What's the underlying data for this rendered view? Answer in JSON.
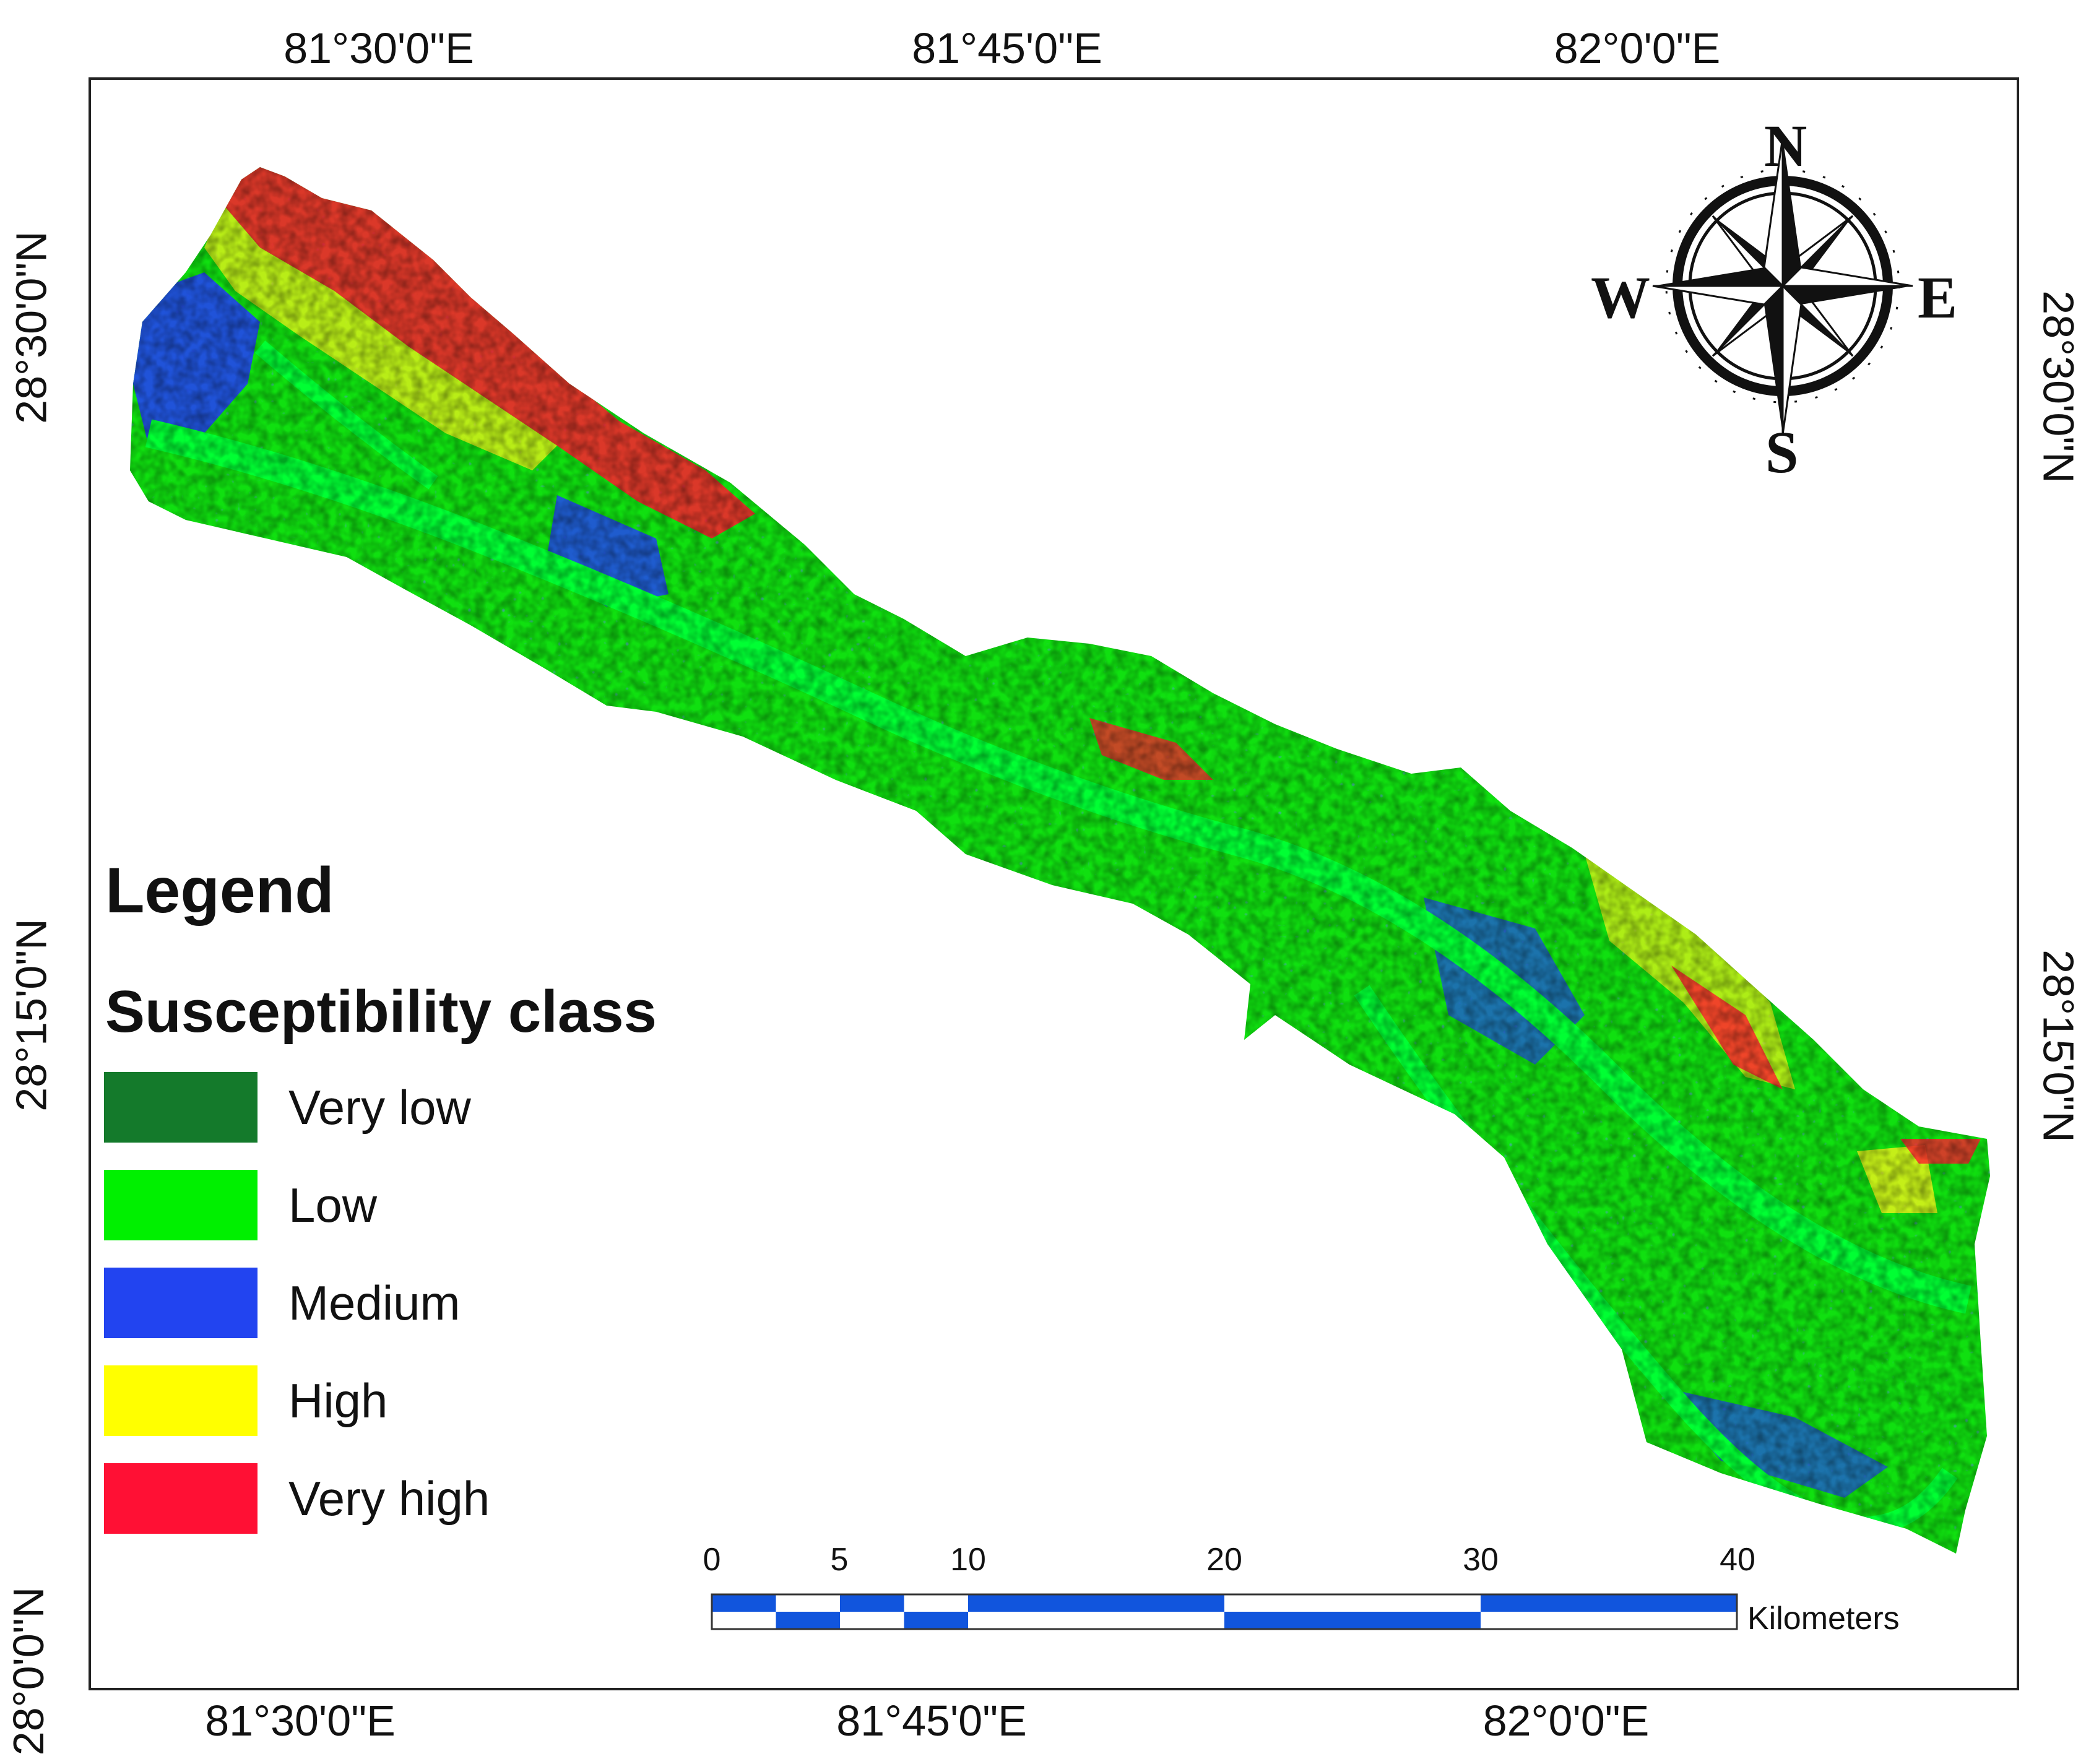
{
  "graticule": {
    "top_labels": [
      "81°30'0\"E",
      "81°45'0\"E",
      "82°0'0\"E"
    ],
    "bottom_labels": [
      "81°30'0\"E",
      "81°45'0\"E",
      "82°0'0\"E"
    ],
    "left_labels": [
      "28°30'0\"N",
      "28°15'0\"N",
      "28°0'0\"N"
    ],
    "right_labels": [
      "28°30'0\"N",
      "28°15'0\"N"
    ]
  },
  "legend": {
    "title": "Legend",
    "subtitle": "Susceptibility class",
    "items": [
      {
        "label": "Very low",
        "color": "#147a2b"
      },
      {
        "label": "Low",
        "color": "#00f000"
      },
      {
        "label": "Medium",
        "color": "#2244f0"
      },
      {
        "label": "High",
        "color": "#ffff00"
      },
      {
        "label": "Very high",
        "color": "#ff1034"
      }
    ]
  },
  "scale_bar": {
    "ticks": [
      "0",
      "5",
      "10",
      "20",
      "30",
      "40"
    ],
    "unit": "Kilometers",
    "color": "#1155dd"
  },
  "north_arrow": {
    "n": "N",
    "s": "S",
    "e": "E",
    "w": "W",
    "icon": "compass-rose-icon"
  }
}
